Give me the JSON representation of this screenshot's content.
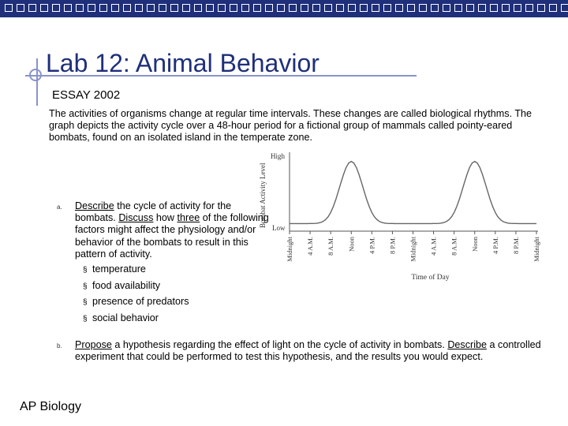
{
  "slide": {
    "title": "Lab 12: Animal Behavior",
    "subtitle": "ESSAY 2002",
    "intro": "The activities of organisms change at regular time intervals. These changes are called biological rhythms. The graph depicts the activity cycle over a 48-hour period for a fictional group of mammals called pointy-eared bombats, found on an isolated island in the temperate zone.",
    "footer": "AP Biology"
  },
  "question_a": {
    "label": "a.",
    "w1": "Describe",
    "t1": " the cycle of activity for the bombats. ",
    "w2": "Discuss",
    "t2": " how ",
    "w3": "three",
    "t3": " of the following factors might affect the physiology and/or behavior of the bombats to result in this pattern of activity.",
    "bullet": "§",
    "factors": [
      "temperature",
      "food availability",
      "presence of predators",
      "social behavior"
    ]
  },
  "question_b": {
    "label": "b.",
    "w1": "Propose",
    "t1": " a hypothesis regarding the effect of light on the cycle of activity in bombats. ",
    "w2": "Describe",
    "t2": " a controlled experiment that could be performed to test this hypothesis, and the results you would expect."
  },
  "chart_data": {
    "type": "line",
    "ylabel": "Bombat Activity Level",
    "xlabel": "Time of Day",
    "y_tick_labels": [
      "High",
      "Low"
    ],
    "x_tick_labels": [
      "Midnight",
      "4 A.M.",
      "8 A.M.",
      "Noon",
      "4 P.M.",
      "8 P.M.",
      "Midnight",
      "4 A.M.",
      "8 A.M.",
      "Noon",
      "4 P.M.",
      "8 P.M.",
      "Midnight"
    ],
    "x": [
      0,
      4,
      8,
      12,
      16,
      20,
      24,
      28,
      32,
      36,
      40,
      44,
      48
    ],
    "hours_per_tick": 4,
    "series": [
      {
        "values": [
          0.02,
          0.05,
          0.3,
          0.98,
          0.3,
          0.05,
          0.02,
          0.05,
          0.3,
          0.98,
          0.3,
          0.05,
          0.02
        ]
      }
    ],
    "grid": false
  }
}
